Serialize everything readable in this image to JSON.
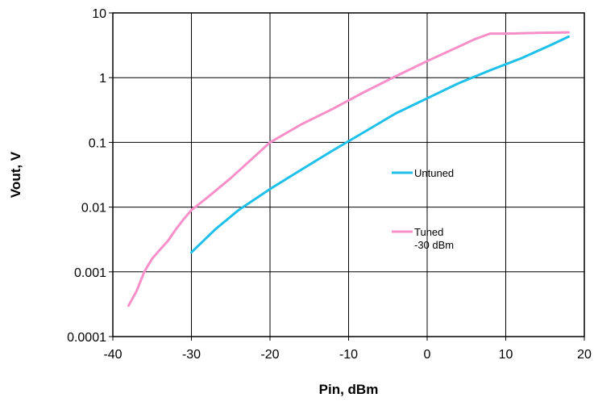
{
  "chart_data": {
    "type": "line",
    "title": "",
    "xlabel": "Pin, dBm",
    "ylabel": "Vout, V",
    "xlim": [
      -40,
      20
    ],
    "ylim": [
      0.0001,
      10
    ],
    "yscale": "log",
    "grid": true,
    "legend_position": "right-inside",
    "x_ticks": [
      "-40",
      "-30",
      "-20",
      "-10",
      "0",
      "10",
      "20"
    ],
    "y_ticks": [
      "0.0001",
      "0.001",
      "0.01",
      "0.1",
      "1",
      "10"
    ],
    "series": [
      {
        "name": "Untuned",
        "color": "#1ec0ea",
        "x": [
          -30,
          -27,
          -24,
          -20,
          -16,
          -12,
          -8,
          -4,
          0,
          4,
          8,
          12,
          16,
          18
        ],
        "y": [
          0.002,
          0.0045,
          0.009,
          0.019,
          0.038,
          0.075,
          0.145,
          0.28,
          0.48,
          0.82,
          1.3,
          2.0,
          3.3,
          4.3
        ]
      },
      {
        "name": "Tuned\n-30 dBm",
        "color": "#f78fc8",
        "x": [
          -38,
          -37,
          -36,
          -35,
          -34,
          -33,
          -32,
          -31,
          -30,
          -28,
          -25,
          -22,
          -20,
          -16,
          -12,
          -8,
          -4,
          0,
          4,
          6,
          8,
          10,
          14,
          18
        ],
        "y": [
          0.0003,
          0.0005,
          0.001,
          0.0016,
          0.0022,
          0.003,
          0.0045,
          0.0065,
          0.009,
          0.014,
          0.028,
          0.06,
          0.1,
          0.19,
          0.33,
          0.6,
          1.05,
          1.8,
          3.0,
          3.9,
          4.8,
          4.8,
          4.9,
          5.0
        ]
      }
    ]
  }
}
